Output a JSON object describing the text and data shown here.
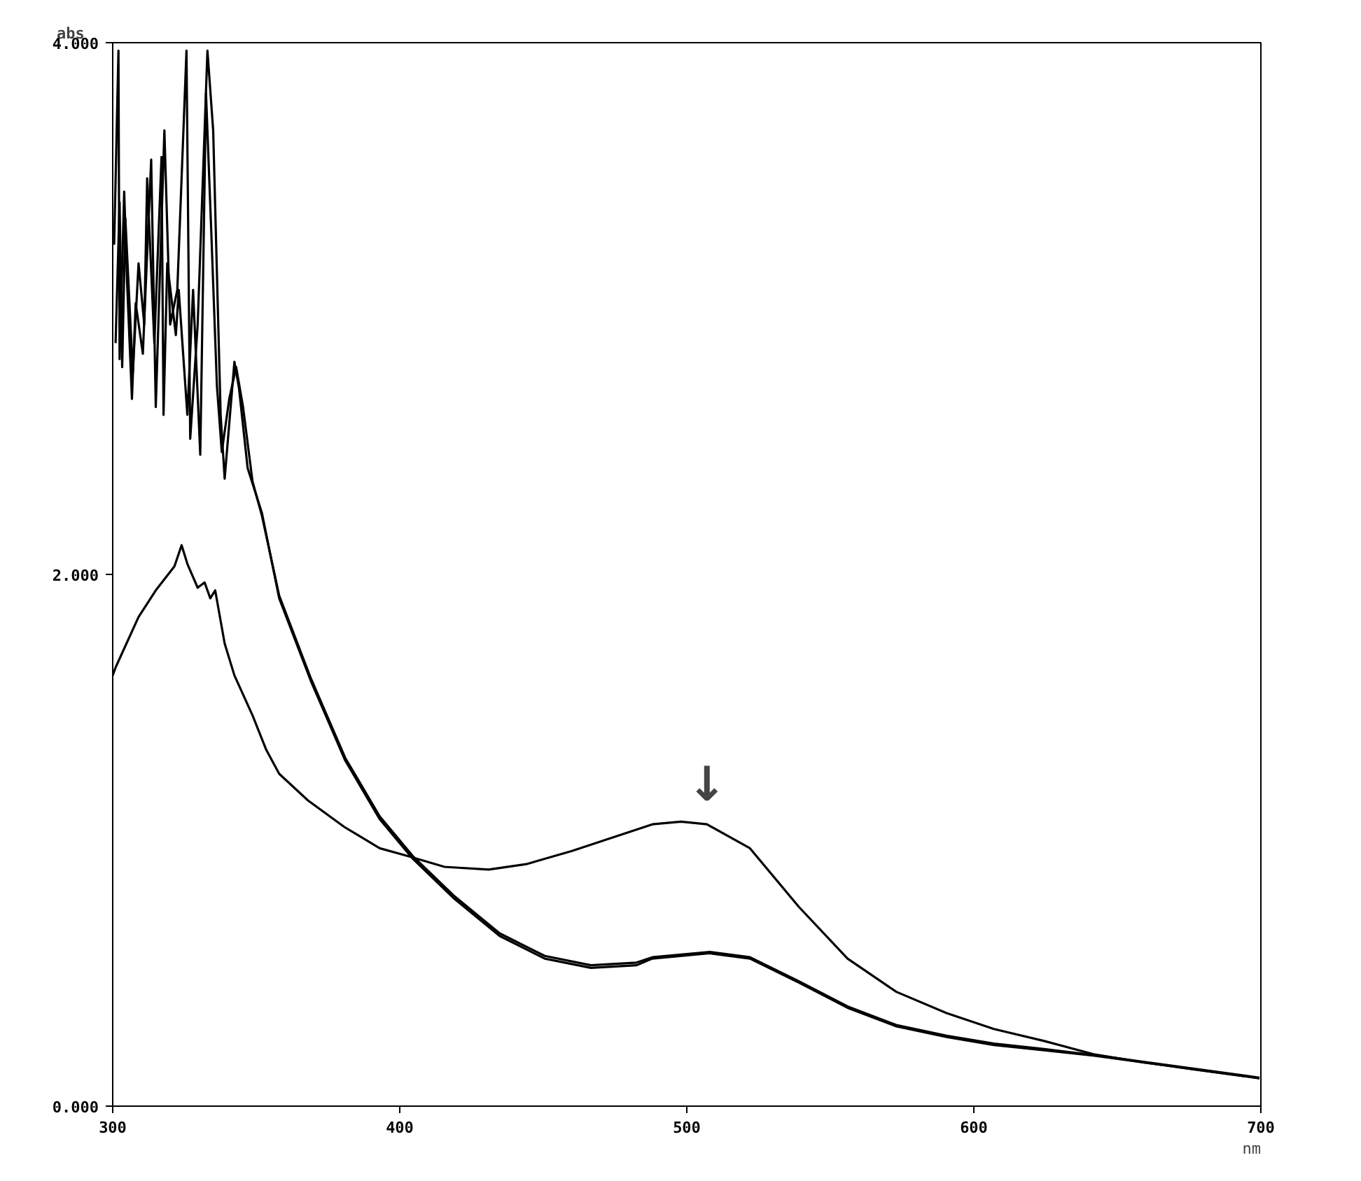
{
  "chart_data": {
    "type": "line",
    "xlabel": "nm",
    "ylabel": "abs",
    "xlim": [
      300,
      700
    ],
    "ylim": [
      0,
      4
    ],
    "xticks": [
      300,
      400,
      500,
      600,
      700
    ],
    "yticks": [
      {
        "value": 0,
        "label": "0.000"
      },
      {
        "value": 2,
        "label": "2.000"
      },
      {
        "value": 4,
        "label": "4.000"
      }
    ],
    "grid": false,
    "marker": "none",
    "line_style": "solid",
    "annotations": [
      {
        "text": "↓",
        "x": 507,
        "y": 1.06
      }
    ],
    "series": [
      {
        "color": "#000000",
        "x": [
          300,
          301,
          309,
          315,
          321.5,
          324,
          326,
          329.6,
          332,
          334,
          335.7,
          339,
          342.4,
          348.7,
          353.5,
          358,
          368,
          380.7,
          393,
          403,
          415.6,
          431,
          444,
          460,
          474,
          488,
          498,
          507,
          522,
          539,
          556,
          573,
          590.5,
          607,
          624.5,
          641.7,
          659,
          675.6,
          699.5
        ],
        "values": [
          1.62,
          1.65,
          1.84,
          1.94,
          2.03,
          2.11,
          2.04,
          1.95,
          1.97,
          1.91,
          1.94,
          1.74,
          1.62,
          1.47,
          1.34,
          1.25,
          1.15,
          1.05,
          0.97,
          0.94,
          0.9,
          0.89,
          0.91,
          0.96,
          1.01,
          1.06,
          1.07,
          1.06,
          0.97,
          0.75,
          0.555,
          0.43,
          0.35,
          0.29,
          0.245,
          0.195,
          0.165,
          0.14,
          0.105
        ]
      },
      {
        "color": "#000000",
        "x": [
          300.5,
          302,
          302.4,
          304,
          305,
          306.7,
          308,
          310.5,
          313.4,
          315,
          318,
          320,
          322.5,
          325.7,
          327,
          329.6,
          333,
          335,
          337.6,
          339,
          342.4,
          344,
          347,
          352,
          358,
          369,
          381,
          393,
          404.6,
          419,
          434.8,
          450.5,
          466.6,
          482.5,
          488,
          508,
          522,
          539,
          556,
          573,
          590.5,
          607,
          624.5,
          642,
          659,
          676,
          699.5
        ],
        "values": [
          3.24,
          3.97,
          2.81,
          3.44,
          3.1,
          2.66,
          3.02,
          2.83,
          3.56,
          2.63,
          3.67,
          2.94,
          3.07,
          3.97,
          2.51,
          2.94,
          3.97,
          3.67,
          2.6,
          2.36,
          2.8,
          2.7,
          2.4,
          2.23,
          1.91,
          1.6,
          1.3,
          1.08,
          0.93,
          0.78,
          0.64,
          0.555,
          0.52,
          0.53,
          0.555,
          0.575,
          0.555,
          0.465,
          0.37,
          0.3,
          0.26,
          0.23,
          0.21,
          0.19,
          0.165,
          0.14,
          0.105
        ]
      },
      {
        "color": "#000000",
        "x": [
          301,
          302.4,
          303.3,
          304.4,
          307,
          309,
          311,
          312,
          314.5,
          317,
          317.7,
          319,
          322,
          323,
          326,
          328,
          330.5,
          332.5,
          334.4,
          336.3,
          338,
          340.6,
          343,
          345.4,
          348.7,
          352,
          358,
          369,
          381,
          393,
          404.6,
          419,
          434.8,
          450.5,
          466.6,
          482.5,
          488,
          508,
          522,
          539,
          556,
          573,
          590.5,
          607,
          624.5,
          642,
          659,
          676,
          699.5
        ],
        "values": [
          2.87,
          3.4,
          2.78,
          3.34,
          2.76,
          3.17,
          2.94,
          3.49,
          2.87,
          3.57,
          2.6,
          3.17,
          2.9,
          3.07,
          2.6,
          3.07,
          2.45,
          3.81,
          3.27,
          2.71,
          2.46,
          2.66,
          2.78,
          2.63,
          2.35,
          2.22,
          1.92,
          1.61,
          1.31,
          1.09,
          0.94,
          0.79,
          0.65,
          0.565,
          0.53,
          0.54,
          0.56,
          0.58,
          0.56,
          0.47,
          0.375,
          0.305,
          0.265,
          0.235,
          0.215,
          0.192,
          0.167,
          0.142,
          0.107
        ]
      }
    ]
  }
}
